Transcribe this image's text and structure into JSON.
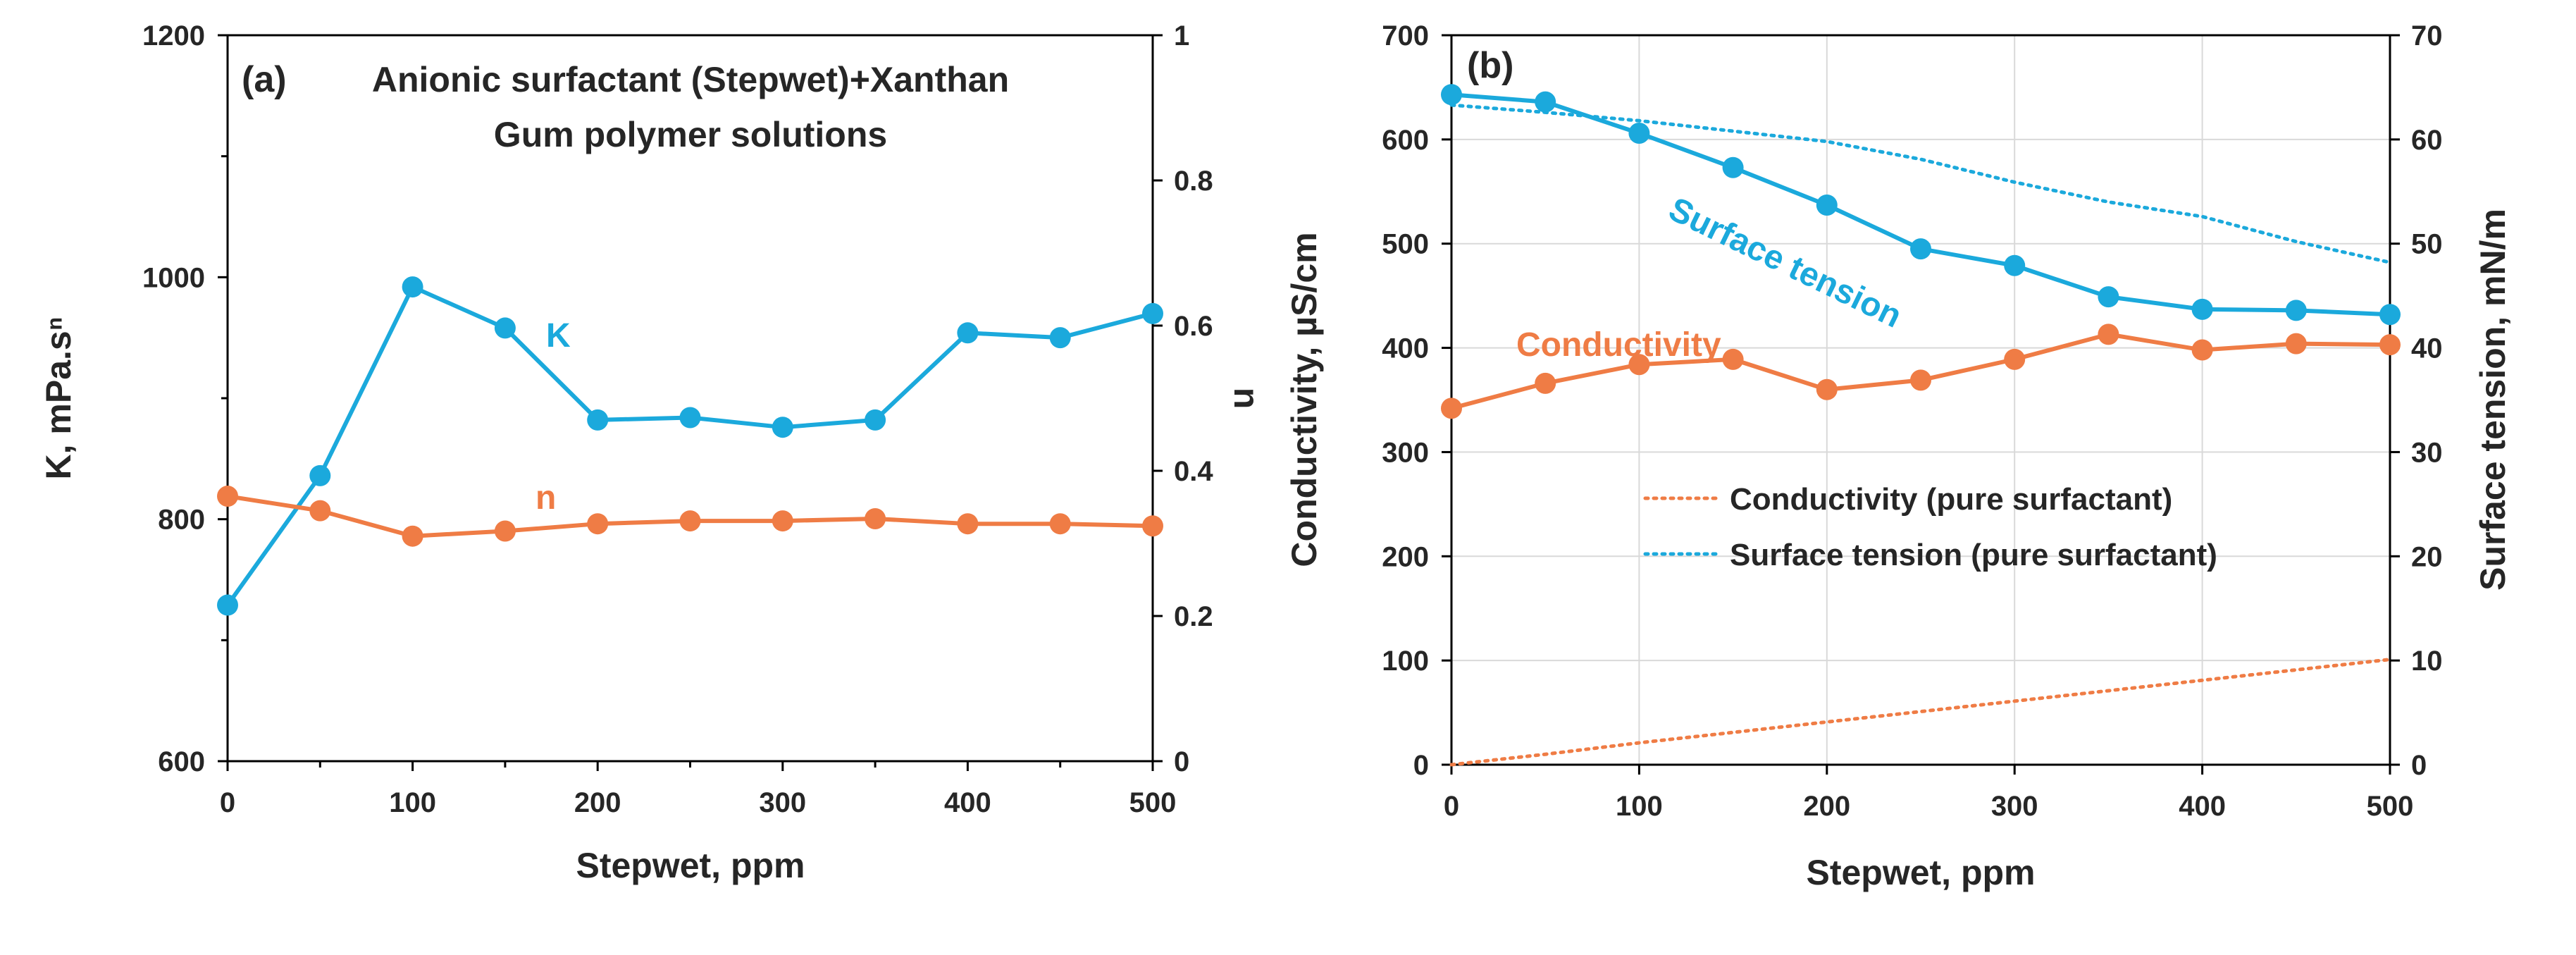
{
  "chart_data": [
    {
      "type": "line",
      "panel_label": "(a)",
      "title_lines": [
        "Anionic surfactant (Stepwet)+Xanthan",
        "Gum polymer solutions"
      ],
      "xlabel": "Stepwet, ppm",
      "ylabel": "K, mPa.sⁿ",
      "y2label": "n",
      "x": [
        0,
        50,
        100,
        150,
        200,
        250,
        300,
        350,
        400,
        450,
        500
      ],
      "xlim": [
        0,
        500
      ],
      "ylim": [
        600,
        1200
      ],
      "y2lim": [
        0,
        1
      ],
      "xticks": [
        0,
        100,
        200,
        300,
        400,
        500
      ],
      "yticks": [
        600,
        800,
        1000,
        1200
      ],
      "y2ticks": [
        0,
        0.2,
        0.4,
        0.6,
        0.8,
        1
      ],
      "grid": false,
      "series": [
        {
          "name": "K",
          "axis": "left",
          "color": "#1ba9dc",
          "values": [
            729,
            836,
            992,
            958,
            882,
            884,
            876,
            882,
            954,
            950,
            970
          ]
        },
        {
          "name": "n",
          "axis": "right",
          "color": "#ef7c45",
          "values": [
            0.365,
            0.345,
            0.31,
            0.317,
            0.327,
            0.331,
            0.331,
            0.334,
            0.327,
            0.327,
            0.324
          ]
        }
      ]
    },
    {
      "type": "line",
      "panel_label": "(b)",
      "xlabel": "Stepwet, ppm",
      "ylabel": "Conductivity, µS/cm",
      "y2label": "Surface tension, mN/m",
      "x": [
        0,
        50,
        100,
        150,
        200,
        250,
        300,
        350,
        400,
        450,
        500
      ],
      "xlim": [
        0,
        500
      ],
      "ylim": [
        0,
        700
      ],
      "y2lim": [
        0,
        70
      ],
      "xticks": [
        0,
        100,
        200,
        300,
        400,
        500
      ],
      "yticks": [
        0,
        100,
        200,
        300,
        400,
        500,
        600,
        700
      ],
      "y2ticks": [
        0,
        10,
        20,
        30,
        40,
        50,
        60,
        70
      ],
      "grid": true,
      "series": [
        {
          "name": "Surface tension",
          "axis": "right",
          "color": "#1ba9dc",
          "values": [
            64.3,
            63.6,
            60.6,
            57.3,
            53.7,
            49.5,
            47.9,
            44.9,
            43.7,
            43.6,
            43.2
          ]
        },
        {
          "name": "Conductivity",
          "axis": "left",
          "color": "#ef7c45",
          "values": [
            342,
            366,
            384,
            389,
            360,
            369,
            389,
            413,
            398,
            404,
            403
          ]
        }
      ],
      "reference_series": [
        {
          "name": "Conductivity (pure surfactant)",
          "axis": "left",
          "color": "#ef7c45",
          "style": "dotted",
          "values": [
            0,
            10,
            21,
            31,
            41,
            51,
            61,
            71,
            81,
            91,
            101
          ]
        },
        {
          "name": "Surface tension (pure surfactant)",
          "axis": "right",
          "color": "#1ba9dc",
          "style": "dotted",
          "values": [
            63.3,
            62.6,
            61.8,
            60.8,
            59.8,
            58.1,
            55.9,
            54.0,
            52.6,
            50.2,
            48.2
          ]
        }
      ]
    }
  ]
}
